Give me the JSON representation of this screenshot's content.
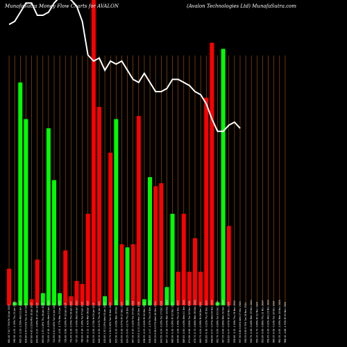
{
  "chart_data": {
    "type": "bar",
    "title_left": "MunafaSutra Money Flow  Charts for AVALON",
    "title_right": "(Avalon  Technologies Ltd) MunafaSutra.com",
    "colors": {
      "background": "#000000",
      "up": "#00ff00",
      "down": "#ff0000",
      "separator": "#b35a00",
      "price_line": "#ffffff"
    },
    "ylim": [
      0,
      100
    ],
    "categories": [
      "Fri 24 Jan 2025",
      "Thu 23 Jan 2025",
      "Wed 22 Jan 2025",
      "Tue 21 Jan 2025",
      "Mon 20 Jan 2025",
      "Fri 17 Jan 2025",
      "Thu 16 Jan 2025",
      "Wed 15 Jan 2025",
      "Tue 14 Jan 2025",
      "Mon 13 Jan 2025",
      "Fri 10 Jan 2025",
      "Thu 09 Jan 2025",
      "Wed 08 Jan 2025",
      "Tue 07 Jan 2025",
      "Mon 06 Jan 2025",
      "Fri 03 Jan 2025",
      "Thu 02 Jan 2025",
      "Wed 01 Jan 2025",
      "Tue 31 Dec 2024",
      "Mon 30 Dec 2024",
      "Fri 27 Dec 2024",
      "Thu 26 Dec 2024",
      "Tue 24 Dec 2024",
      "Mon 23 Dec 2024",
      "Fri 20 Dec 2024",
      "Thu 19 Dec 2024",
      "Wed 18 Dec 2024",
      "Tue 17 Dec 2024",
      "Mon 16 Dec 2024",
      "Fri 13 Dec 2024",
      "Thu 12 Dec 2024",
      "Wed 11 Dec 2024",
      "Tue 10 Dec 2024",
      "Mon 09 Dec 2024",
      "Fri 06 Dec 2024",
      "Thu 05 Dec 2024",
      "Wed 04 Dec 2024",
      "Tue 03 Dec 2024",
      "Mon 02 Dec 2024",
      "Fri 29 Nov 2024",
      "Thu 28 Nov 2024",
      "Wed 27 Nov 2024",
      "Tue 26 Nov 2024",
      "Mon 25 Nov 2024",
      "Fri 22 Nov 2024",
      "Thu 21 Nov 2024",
      "Wed 20 Nov 2024",
      "Tue 19 Nov 2024",
      "Mon 18 Nov 2024",
      "Fri 15 Nov 2024"
    ],
    "tick_labels": [
      "661.40 7.04 7.74%",
      "598.30 -1.05 -1.35%",
      "605.15 -2.20 -2.53%",
      "616.80 0.05 0.01%",
      "637.80 4.85 3.32%",
      "639.00 -0.25 -0.04%",
      "693.00 1.35 1.26%",
      "711.05 -0.18 -0.03%",
      "724.95 0.01 0.00%",
      "705.60 -1.05 -1.77%",
      "728.80 -0.68 -0.93%",
      "741.45 -0.39 -0.55%",
      "737.20 -3.95 -3.43%",
      "768.00 -4.36 -5.26%",
      "797.60 -1.11 -1.41%",
      "811.55 -0.58 -0.70%",
      "826.15 -0.30 -0.17%",
      "820.00 1.35 2.55%",
      "809.75 1.30 0.19%",
      "825.50 -0.33 -0.40%",
      "835.95 -0.38 -0.57%",
      "824.25 -0.43 -0.17%",
      "807.20 -0.30 -0.32%",
      "824.35 0.11 0.12%",
      "836.55 -0.23 -0.24%",
      "816.85 -1.47 -1.57%",
      "839.35 0.08 0.07%",
      "843.55 -0.24 -0.33%",
      "847.15 -0.18 -0.14%",
      "860.30 -0.18 -0.04%",
      "849.40 -1.08 -1.40%",
      "869.05 -0.80 -0.40%",
      "874.00 -0.68 -0.85%",
      "878.75 -0.70 -0.60%",
      "889.75 -0.04 -0.09%",
      "895.85 -0.18 -0.22%",
      "898.00 -0.57 -0.57%",
      "902.70 -0.95 -0.90%",
      "907.55 -0.64 -0.60%",
      "919.85 -0.47 -0.47%",
      "928.80 -1.15 -1.16%",
      "937.50 0.68 0.64%",
      "938.55 0.65 0.70%",
      "948.70 -0.46 -0.48%",
      "950.15 -0.74 -0.69%",
      "953.00 -0.69 -0.66%",
      "958.45 -0.26 -0.32%",
      "960.35 -0.08 -0.10%",
      "962.35 -0.65 -0.59%",
      "966.10 -1.66 -1.53%"
    ],
    "bar_values": [
      12,
      1,
      73,
      61,
      2,
      15,
      4,
      58,
      41,
      4,
      18,
      3,
      8,
      7,
      30,
      100,
      65,
      3,
      50,
      61,
      20,
      19,
      20,
      62,
      2,
      42,
      39,
      40,
      6,
      30,
      11,
      30,
      11,
      22,
      11,
      68,
      86,
      1,
      84,
      26,
      0,
      0,
      0,
      0,
      0,
      0,
      0,
      0,
      0,
      0
    ],
    "bar_colors": [
      "down",
      "up",
      "up",
      "up",
      "down",
      "down",
      "up",
      "up",
      "up",
      "up",
      "down",
      "down",
      "down",
      "down",
      "down",
      "down",
      "down",
      "up",
      "down",
      "up",
      "down",
      "up",
      "down",
      "down",
      "up",
      "up",
      "down",
      "down",
      "up",
      "up",
      "down",
      "down",
      "down",
      "down",
      "down",
      "down",
      "down",
      "up",
      "up",
      "down",
      "none",
      "none",
      "none",
      "none",
      "none",
      "none",
      "none",
      "none",
      "none",
      "none"
    ],
    "price_line": [
      92,
      93,
      96,
      99,
      99,
      95,
      95,
      96,
      99,
      101,
      101,
      100,
      98,
      93,
      82,
      80,
      81,
      77,
      80,
      79,
      80,
      77,
      74,
      73,
      76,
      73,
      70,
      70,
      71,
      74,
      74,
      73,
      72,
      70,
      69,
      66,
      61,
      57,
      57,
      59,
      60,
      58,
      null,
      null,
      null,
      null,
      null,
      null,
      null,
      null
    ]
  }
}
